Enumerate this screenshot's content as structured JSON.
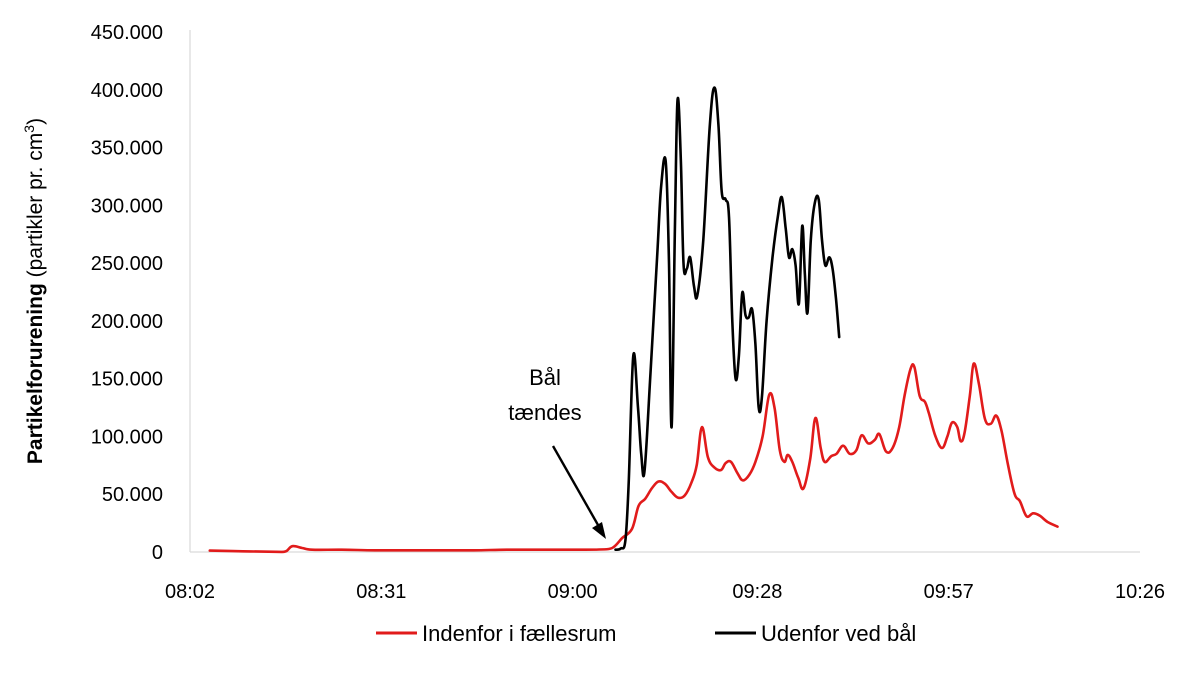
{
  "chart_data": {
    "type": "line",
    "ylabel_bold": "Partikelforurening",
    "ylabel_rest": " (partikler pr. cm",
    "ylabel_sup": "3",
    "ylabel_end": ")",
    "xlim": [
      482,
      626
    ],
    "ylim": [
      0,
      450000
    ],
    "x_ticks": [
      {
        "value": 482,
        "label": "08:02"
      },
      {
        "value": 511,
        "label": "08:31"
      },
      {
        "value": 540,
        "label": "09:00"
      },
      {
        "value": 568,
        "label": "09:28"
      },
      {
        "value": 597,
        "label": "09:57"
      },
      {
        "value": 626,
        "label": "10:26"
      }
    ],
    "y_ticks": [
      {
        "value": 0,
        "label": "0"
      },
      {
        "value": 50000,
        "label": "50.000"
      },
      {
        "value": 100000,
        "label": "100.000"
      },
      {
        "value": 150000,
        "label": "150.000"
      },
      {
        "value": 200000,
        "label": "200.000"
      },
      {
        "value": 250000,
        "label": "250.000"
      },
      {
        "value": 300000,
        "label": "300.000"
      },
      {
        "value": 350000,
        "label": "350.000"
      },
      {
        "value": 400000,
        "label": "400.000"
      },
      {
        "value": 450000,
        "label": "450.000"
      }
    ],
    "grid": false,
    "legend_position": "bottom",
    "annotation": {
      "lines": [
        "Bål",
        "tændes"
      ],
      "x": 547,
      "y": 2000
    },
    "series": [
      {
        "name": "Indenfor i fællesrum",
        "color": "#e11b1b",
        "points": [
          [
            485,
            1200
          ],
          [
            490,
            600
          ],
          [
            495,
            200
          ],
          [
            496.5,
            500
          ],
          [
            497.5,
            5000
          ],
          [
            499,
            3500
          ],
          [
            500.5,
            2000
          ],
          [
            505,
            2000
          ],
          [
            510,
            1500
          ],
          [
            515,
            1500
          ],
          [
            520,
            1500
          ],
          [
            525,
            1500
          ],
          [
            530,
            2000
          ],
          [
            535,
            2000
          ],
          [
            540,
            2000
          ],
          [
            544,
            2200
          ],
          [
            546,
            3500
          ],
          [
            547.5,
            12000
          ],
          [
            549,
            20000
          ],
          [
            550,
            40000
          ],
          [
            551,
            46000
          ],
          [
            552,
            55000
          ],
          [
            553,
            61000
          ],
          [
            554,
            59000
          ],
          [
            555,
            52000
          ],
          [
            556,
            47000
          ],
          [
            557,
            49000
          ],
          [
            558,
            60000
          ],
          [
            558.8,
            75000
          ],
          [
            559.6,
            108000
          ],
          [
            560.5,
            82000
          ],
          [
            561.5,
            73000
          ],
          [
            562.5,
            71000
          ],
          [
            563.2,
            77000
          ],
          [
            564,
            78000
          ],
          [
            565,
            68000
          ],
          [
            565.8,
            62000
          ],
          [
            566.8,
            67000
          ],
          [
            567.7,
            78000
          ],
          [
            568.8,
            100000
          ],
          [
            569.8,
            136000
          ],
          [
            570.6,
            125000
          ],
          [
            571.4,
            88000
          ],
          [
            572.1,
            78000
          ],
          [
            572.6,
            84000
          ],
          [
            573.3,
            78000
          ],
          [
            574.2,
            64000
          ],
          [
            575,
            55000
          ],
          [
            576,
            80000
          ],
          [
            576.8,
            116000
          ],
          [
            577.6,
            90000
          ],
          [
            578.2,
            78000
          ],
          [
            579.2,
            83000
          ],
          [
            580,
            85000
          ],
          [
            581,
            92000
          ],
          [
            582,
            85000
          ],
          [
            583,
            88000
          ],
          [
            583.8,
            101000
          ],
          [
            584.8,
            94000
          ],
          [
            585.8,
            97000
          ],
          [
            586.5,
            102000
          ],
          [
            587.5,
            87000
          ],
          [
            588.5,
            90000
          ],
          [
            589.5,
            108000
          ],
          [
            590.3,
            135000
          ],
          [
            591.2,
            158000
          ],
          [
            591.8,
            160000
          ],
          [
            592.6,
            135000
          ],
          [
            593.4,
            130000
          ],
          [
            594,
            120000
          ],
          [
            595,
            100000
          ],
          [
            596,
            90000
          ],
          [
            596.8,
            100000
          ],
          [
            597.5,
            112000
          ],
          [
            598.3,
            108000
          ],
          [
            598.8,
            96000
          ],
          [
            599.4,
            103000
          ],
          [
            600.2,
            135000
          ],
          [
            600.8,
            163000
          ],
          [
            601.6,
            145000
          ],
          [
            602.5,
            115000
          ],
          [
            603.4,
            111000
          ],
          [
            604.2,
            118000
          ],
          [
            605,
            105000
          ],
          [
            606,
            75000
          ],
          [
            607,
            50000
          ],
          [
            607.8,
            44000
          ],
          [
            608.8,
            31000
          ],
          [
            609.8,
            33500
          ],
          [
            610.8,
            31500
          ],
          [
            612,
            26000
          ],
          [
            613.5,
            22000
          ]
        ]
      },
      {
        "name": "Udenfor ved bål",
        "color": "#000000",
        "points": [
          [
            546.5,
            2000
          ],
          [
            547.3,
            3000
          ],
          [
            548,
            10000
          ],
          [
            548.5,
            60000
          ],
          [
            549.2,
            170000
          ],
          [
            549.9,
            125000
          ],
          [
            550.4,
            85000
          ],
          [
            550.9,
            70000
          ],
          [
            551.8,
            155000
          ],
          [
            552.8,
            255000
          ],
          [
            553.4,
            315000
          ],
          [
            554.1,
            338000
          ],
          [
            554.6,
            250000
          ],
          [
            555,
            108000
          ],
          [
            555.5,
            280000
          ],
          [
            555.9,
            391000
          ],
          [
            556.4,
            340000
          ],
          [
            556.8,
            250000
          ],
          [
            557.3,
            245000
          ],
          [
            557.8,
            255000
          ],
          [
            558.4,
            230000
          ],
          [
            558.9,
            222000
          ],
          [
            559.8,
            270000
          ],
          [
            560.8,
            370000
          ],
          [
            561.5,
            402000
          ],
          [
            562.1,
            370000
          ],
          [
            562.6,
            312000
          ],
          [
            563.2,
            305000
          ],
          [
            563.7,
            290000
          ],
          [
            564.2,
            200000
          ],
          [
            564.7,
            150000
          ],
          [
            565.2,
            170000
          ],
          [
            565.7,
            224000
          ],
          [
            566.2,
            205000
          ],
          [
            566.7,
            203000
          ],
          [
            567.2,
            210000
          ],
          [
            567.7,
            180000
          ],
          [
            568.2,
            125000
          ],
          [
            568.7,
            135000
          ],
          [
            569.4,
            200000
          ],
          [
            570.3,
            255000
          ],
          [
            571.1,
            290000
          ],
          [
            571.7,
            307000
          ],
          [
            572.3,
            280000
          ],
          [
            572.8,
            255000
          ],
          [
            573.3,
            262000
          ],
          [
            573.8,
            248000
          ],
          [
            574.3,
            215000
          ],
          [
            574.8,
            282000
          ],
          [
            575.2,
            240000
          ],
          [
            575.6,
            207000
          ],
          [
            576.1,
            270000
          ],
          [
            576.7,
            302000
          ],
          [
            577.3,
            305000
          ],
          [
            577.8,
            270000
          ],
          [
            578.3,
            248000
          ],
          [
            578.9,
            255000
          ],
          [
            579.4,
            245000
          ],
          [
            579.9,
            220000
          ],
          [
            580.4,
            186000
          ]
        ]
      }
    ]
  }
}
